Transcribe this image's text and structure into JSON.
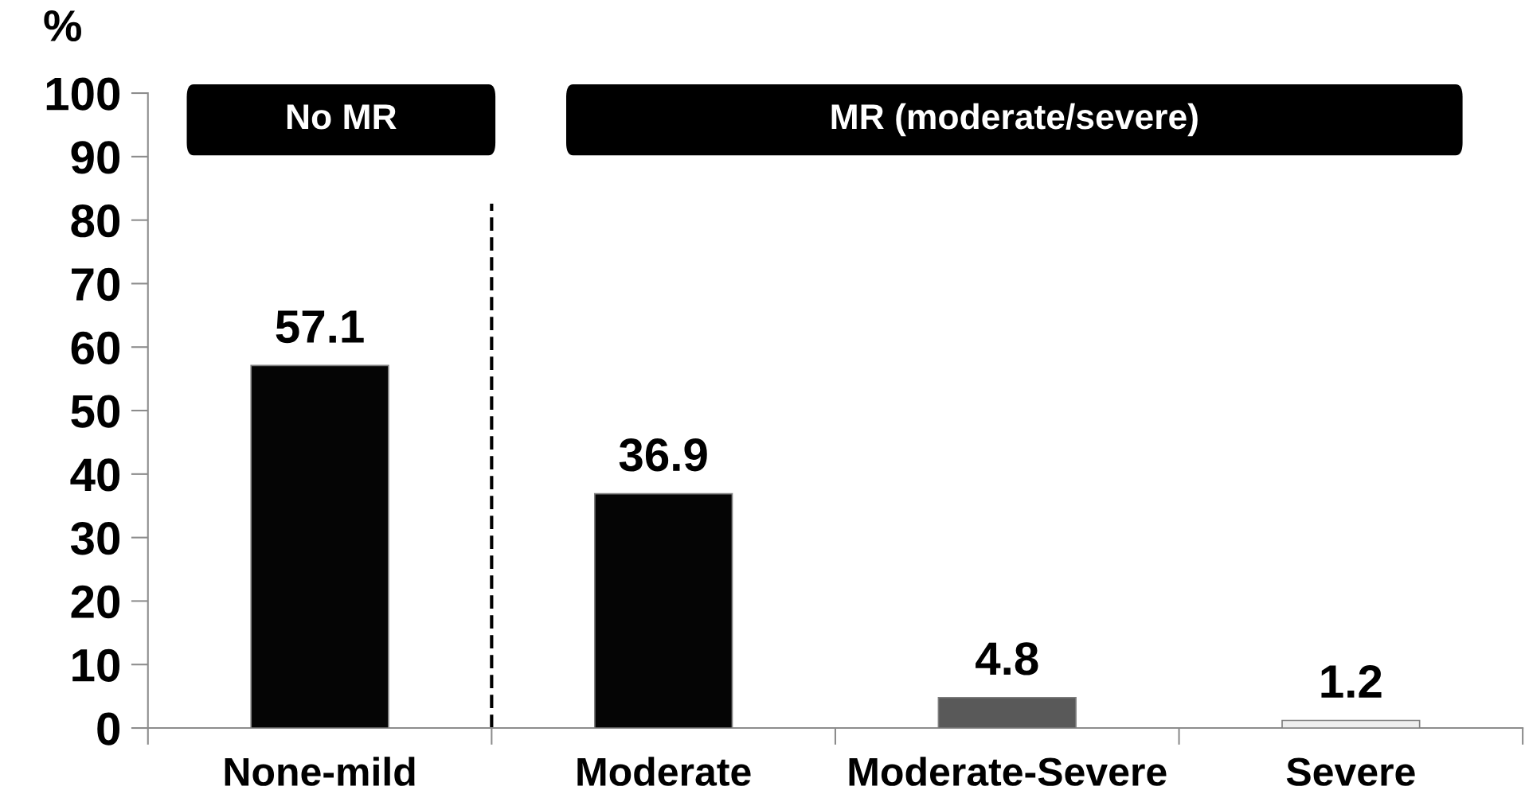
{
  "chart_data": {
    "type": "bar",
    "ylabel": "%",
    "categories": [
      "None-mild",
      "Moderate",
      "Moderate-Severe",
      "Severe"
    ],
    "values": [
      57.1,
      36.9,
      4.8,
      1.2
    ],
    "colors": [
      "#050505",
      "#050505",
      "#595959",
      "#eeeeee"
    ],
    "ylim": [
      0,
      100
    ],
    "yticks": [
      0,
      10,
      20,
      30,
      40,
      50,
      60,
      70,
      80,
      90,
      100
    ],
    "data_labels": true,
    "grid": false,
    "legend": false,
    "annotations": [
      "No MR",
      "MR (moderate/severe)"
    ]
  }
}
